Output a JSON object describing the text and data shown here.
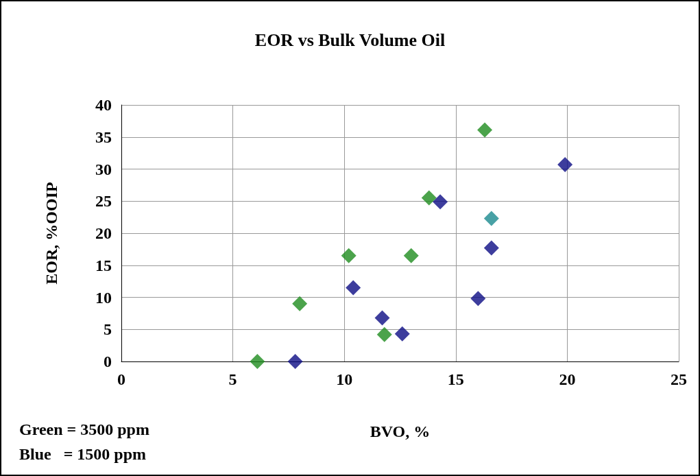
{
  "chart_data": {
    "type": "scatter",
    "title": "EOR vs Bulk Volume Oil",
    "xlabel": "BVO, %",
    "ylabel": "EOR, %OOIP",
    "xlim": [
      0,
      25
    ],
    "xticks": [
      0,
      5,
      10,
      15,
      20,
      25
    ],
    "ylim": [
      0,
      40
    ],
    "yticks": [
      0,
      5,
      10,
      15,
      20,
      25,
      30,
      35,
      40
    ],
    "grid": true,
    "marker": "diamond",
    "annotations": [
      "Green = 3500 ppm",
      "Blue   = 1500 ppm"
    ],
    "series": [
      {
        "color": "#1e8c1e",
        "x": [
          6.1,
          8.0,
          10.2,
          11.8,
          13.0,
          13.8,
          16.3
        ],
        "values": [
          0,
          9.0,
          16.5,
          4.2,
          16.5,
          25.5,
          36.1
        ]
      },
      {
        "color": "#0c0c84",
        "x": [
          7.8,
          10.4,
          11.7,
          12.6,
          14.3,
          16.0,
          16.6,
          19.9
        ],
        "values": [
          0,
          11.5,
          6.8,
          4.3,
          24.9,
          9.8,
          17.7,
          30.7
        ]
      },
      {
        "color": "#1a8a8e",
        "x": [
          16.6
        ],
        "values": [
          22.3
        ]
      }
    ]
  }
}
